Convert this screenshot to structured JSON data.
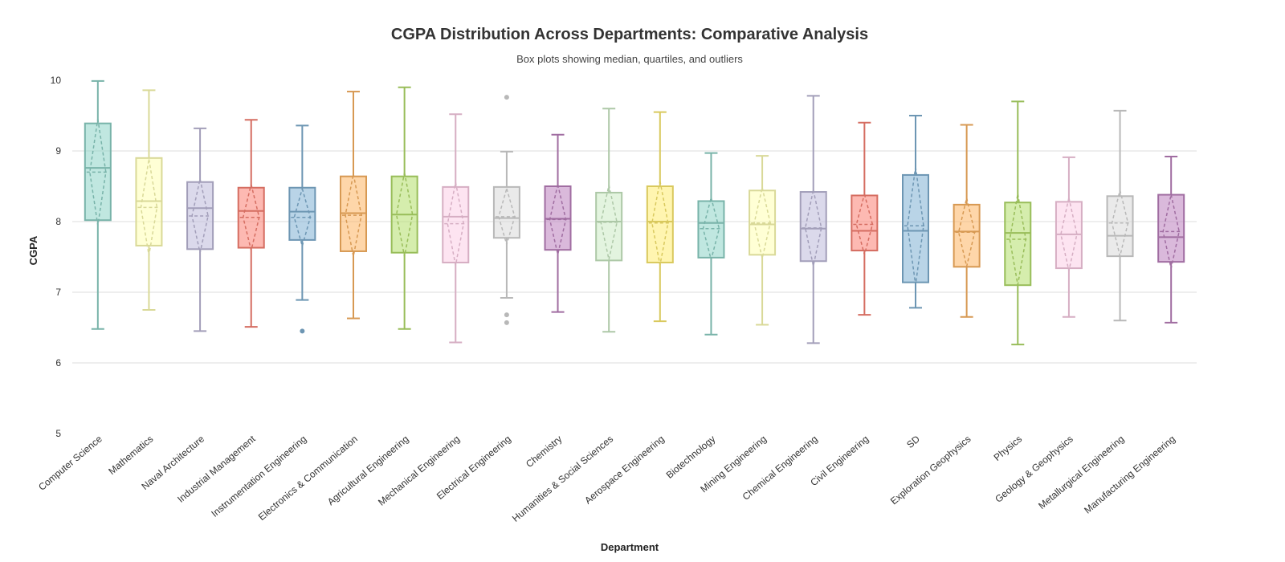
{
  "chart_data": {
    "type": "box",
    "title": "CGPA Distribution Across Departments: Comparative Analysis",
    "subtitle": "Box plots showing median, quartiles, and outliers",
    "xlabel": "Department",
    "ylabel": "CGPA",
    "ylim": [
      5,
      10
    ],
    "y_ticks": [
      5,
      6,
      7,
      8,
      9,
      10
    ],
    "grid": true,
    "legend": "none",
    "series": [
      {
        "category": "Computer Science",
        "color": "#8dd3c7",
        "min": 6.48,
        "q1": 8.02,
        "median": 8.76,
        "q3": 9.39,
        "max": 9.99,
        "mean": 8.7,
        "outliers": []
      },
      {
        "category": "Mathematics",
        "color": "#ffffb3",
        "min": 6.75,
        "q1": 7.66,
        "median": 8.29,
        "q3": 8.9,
        "max": 9.86,
        "mean": 8.2,
        "outliers": []
      },
      {
        "category": "Naval Architecture",
        "color": "#bebada",
        "min": 6.45,
        "q1": 7.61,
        "median": 8.19,
        "q3": 8.56,
        "max": 9.32,
        "mean": 8.08,
        "outliers": []
      },
      {
        "category": "Industrial Management",
        "color": "#fb8072",
        "min": 6.51,
        "q1": 7.63,
        "median": 8.15,
        "q3": 8.48,
        "max": 9.44,
        "mean": 8.06,
        "outliers": []
      },
      {
        "category": "Instrumentation Engineering",
        "color": "#80b1d3",
        "min": 6.89,
        "q1": 7.74,
        "median": 8.14,
        "q3": 8.48,
        "max": 9.36,
        "mean": 8.06,
        "outliers": [
          6.45
        ]
      },
      {
        "category": "Electronics & Communication",
        "color": "#fdb462",
        "min": 6.63,
        "q1": 7.58,
        "median": 8.12,
        "q3": 8.64,
        "max": 9.84,
        "mean": 8.09,
        "outliers": []
      },
      {
        "category": "Agricultural Engineering",
        "color": "#b3de69",
        "min": 6.48,
        "q1": 7.56,
        "median": 8.1,
        "q3": 8.64,
        "max": 9.9,
        "mean": 8.1,
        "outliers": []
      },
      {
        "category": "Mechanical Engineering",
        "color": "#fccde5",
        "min": 6.29,
        "q1": 7.42,
        "median": 8.07,
        "q3": 8.49,
        "max": 9.52,
        "mean": 7.97,
        "outliers": []
      },
      {
        "category": "Electrical Engineering",
        "color": "#d9d9d9",
        "min": 6.92,
        "q1": 7.77,
        "median": 8.05,
        "q3": 8.49,
        "max": 8.99,
        "mean": 8.07,
        "outliers": [
          9.76,
          6.68,
          6.57
        ]
      },
      {
        "category": "Chemistry",
        "color": "#bc80bd",
        "min": 6.72,
        "q1": 7.6,
        "median": 8.04,
        "q3": 8.5,
        "max": 9.23,
        "mean": 8.03,
        "outliers": []
      },
      {
        "category": "Humanities & Social Sciences",
        "color": "#ccebc5",
        "min": 6.44,
        "q1": 7.45,
        "median": 8.0,
        "q3": 8.41,
        "max": 9.6,
        "mean": 7.99,
        "outliers": []
      },
      {
        "category": "Aerospace Engineering",
        "color": "#ffed6f",
        "min": 6.59,
        "q1": 7.42,
        "median": 8.0,
        "q3": 8.5,
        "max": 9.55,
        "mean": 7.98,
        "outliers": []
      },
      {
        "category": "Biotechnology",
        "color": "#8dd3c7",
        "min": 6.4,
        "q1": 7.49,
        "median": 7.98,
        "q3": 8.29,
        "max": 8.97,
        "mean": 7.9,
        "outliers": []
      },
      {
        "category": "Mining Engineering",
        "color": "#ffffb3",
        "min": 6.54,
        "q1": 7.53,
        "median": 7.96,
        "q3": 8.44,
        "max": 8.93,
        "mean": 7.98,
        "outliers": []
      },
      {
        "category": "Chemical Engineering",
        "color": "#bebada",
        "min": 6.28,
        "q1": 7.44,
        "median": 7.9,
        "q3": 8.42,
        "max": 9.78,
        "mean": 7.91,
        "outliers": []
      },
      {
        "category": "Civil Engineering",
        "color": "#fb8072",
        "min": 6.68,
        "q1": 7.59,
        "median": 7.87,
        "q3": 8.37,
        "max": 9.4,
        "mean": 7.96,
        "outliers": []
      },
      {
        "category": "SD",
        "color": "#80b1d3",
        "min": 6.78,
        "q1": 7.14,
        "median": 7.87,
        "q3": 8.66,
        "max": 9.5,
        "mean": 7.94,
        "outliers": []
      },
      {
        "category": "Exploration Geophysics",
        "color": "#fdb462",
        "min": 6.65,
        "q1": 7.36,
        "median": 7.86,
        "q3": 8.24,
        "max": 9.37,
        "mean": 7.85,
        "outliers": []
      },
      {
        "category": "Physics",
        "color": "#b3de69",
        "min": 6.26,
        "q1": 7.1,
        "median": 7.84,
        "q3": 8.27,
        "max": 9.7,
        "mean": 7.75,
        "outliers": []
      },
      {
        "category": "Geology & Geophysics",
        "color": "#fccde5",
        "min": 6.65,
        "q1": 7.34,
        "median": 7.82,
        "q3": 8.28,
        "max": 8.91,
        "mean": 7.82,
        "outliers": []
      },
      {
        "category": "Metallurgical Engineering",
        "color": "#d9d9d9",
        "min": 6.6,
        "q1": 7.51,
        "median": 7.8,
        "q3": 8.36,
        "max": 9.57,
        "mean": 7.98,
        "outliers": []
      },
      {
        "category": "Manufacturing Engineering",
        "color": "#bc80bd",
        "min": 6.57,
        "q1": 7.43,
        "median": 7.78,
        "q3": 8.38,
        "max": 8.92,
        "mean": 7.86,
        "outliers": []
      }
    ]
  }
}
